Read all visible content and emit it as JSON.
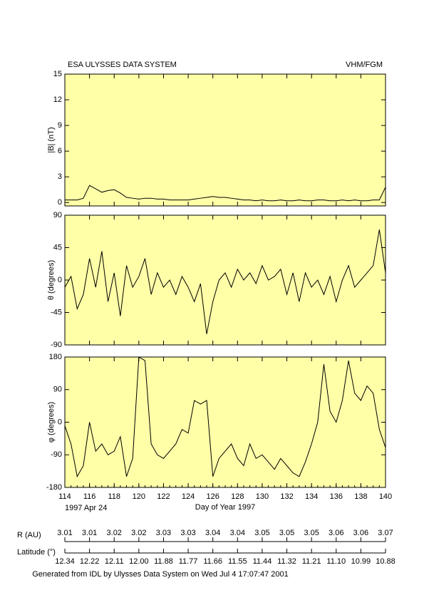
{
  "header": {
    "title": "ESA ULYSSES DATA SYSTEM",
    "instrument": "VHM/FGM"
  },
  "chart_data": [
    {
      "type": "line",
      "ylabel": "|B| (nT)",
      "background": "#ffffa8",
      "xlim": [
        114,
        140
      ],
      "ylim": [
        -0.4,
        15
      ],
      "yticks": [
        0,
        3,
        6,
        9,
        12,
        15
      ],
      "x": [
        114,
        114.5,
        115,
        115.5,
        116,
        116.5,
        117,
        117.5,
        118,
        118.5,
        119,
        119.5,
        120,
        120.5,
        121,
        121.5,
        122,
        122.5,
        123,
        123.5,
        124,
        124.5,
        125,
        125.5,
        126,
        126.5,
        127,
        127.5,
        128,
        128.5,
        129,
        129.5,
        130,
        130.5,
        131,
        131.5,
        132,
        132.5,
        133,
        133.5,
        134,
        134.5,
        135,
        135.5,
        136,
        136.5,
        137,
        137.5,
        138,
        138.5,
        139,
        139.5,
        140
      ],
      "series": [
        {
          "color": "#000000",
          "values": [
            0.3,
            0.3,
            0.3,
            0.5,
            2.0,
            1.6,
            1.2,
            1.4,
            1.5,
            1.1,
            0.6,
            0.5,
            0.4,
            0.5,
            0.5,
            0.4,
            0.4,
            0.3,
            0.3,
            0.3,
            0.3,
            0.4,
            0.5,
            0.6,
            0.7,
            0.6,
            0.6,
            0.5,
            0.4,
            0.3,
            0.3,
            0.2,
            0.3,
            0.2,
            0.2,
            0.3,
            0.2,
            0.2,
            0.3,
            0.2,
            0.2,
            0.3,
            0.3,
            0.2,
            0.2,
            0.3,
            0.2,
            0.3,
            0.2,
            0.2,
            0.3,
            0.3,
            1.8
          ]
        }
      ]
    },
    {
      "type": "line",
      "ylabel": "θ (degrees)",
      "background": "#ffffa8",
      "xlim": [
        114,
        140
      ],
      "ylim": [
        -90,
        90
      ],
      "yticks": [
        -90,
        -45,
        0,
        45,
        90
      ],
      "x": [
        114,
        114.5,
        115,
        115.5,
        116,
        116.5,
        117,
        117.5,
        118,
        118.5,
        119,
        119.5,
        120,
        120.5,
        121,
        121.5,
        122,
        122.5,
        123,
        123.5,
        124,
        124.5,
        125,
        125.5,
        126,
        126.5,
        127,
        127.5,
        128,
        128.5,
        129,
        129.5,
        130,
        130.5,
        131,
        131.5,
        132,
        132.5,
        133,
        133.5,
        134,
        134.5,
        135,
        135.5,
        136,
        136.5,
        137,
        137.5,
        138,
        138.5,
        139,
        139.5,
        140
      ],
      "series": [
        {
          "color": "#000000",
          "values": [
            -10,
            5,
            -40,
            -20,
            30,
            -10,
            40,
            -30,
            10,
            -50,
            20,
            -10,
            5,
            30,
            -20,
            10,
            -10,
            0,
            -20,
            5,
            -10,
            -30,
            -5,
            -75,
            -30,
            0,
            10,
            -10,
            15,
            0,
            10,
            -5,
            20,
            0,
            5,
            15,
            -20,
            10,
            -30,
            10,
            -10,
            0,
            -20,
            5,
            -30,
            0,
            20,
            -10,
            0,
            10,
            20,
            70,
            10
          ]
        }
      ]
    },
    {
      "type": "line",
      "ylabel": "φ (degrees)",
      "xlabel": "Day of Year 1997",
      "start_date": "1997 Apr 24",
      "background": "#ffffa8",
      "xlim": [
        114,
        140
      ],
      "ylim": [
        -180,
        180
      ],
      "yticks": [
        -180,
        -90,
        0,
        90,
        180
      ],
      "xticks": [
        114,
        116,
        118,
        120,
        122,
        124,
        126,
        128,
        130,
        132,
        134,
        136,
        138,
        140
      ],
      "x": [
        114,
        114.5,
        115,
        115.5,
        116,
        116.5,
        117,
        117.5,
        118,
        118.5,
        119,
        119.5,
        120,
        120.5,
        121,
        121.5,
        122,
        122.5,
        123,
        123.5,
        124,
        124.5,
        125,
        125.5,
        126,
        126.5,
        127,
        127.5,
        128,
        128.5,
        129,
        129.5,
        130,
        130.5,
        131,
        131.5,
        132,
        132.5,
        133,
        133.5,
        134,
        134.5,
        135,
        135.5,
        136,
        136.5,
        137,
        137.5,
        138,
        138.5,
        139,
        139.5,
        140
      ],
      "series": [
        {
          "color": "#000000",
          "values": [
            -10,
            -60,
            -150,
            -120,
            0,
            -80,
            -60,
            -90,
            -80,
            -40,
            -150,
            -100,
            180,
            170,
            -60,
            -90,
            -100,
            -80,
            -60,
            -20,
            -30,
            60,
            50,
            60,
            -150,
            -100,
            -80,
            -60,
            -100,
            -120,
            -60,
            -100,
            -90,
            -110,
            -130,
            -100,
            -120,
            -140,
            -150,
            -110,
            -60,
            0,
            160,
            30,
            0,
            60,
            170,
            80,
            60,
            100,
            80,
            -20,
            -70
          ]
        }
      ]
    }
  ],
  "ephemeris": {
    "r_label": "R (AU)",
    "r": [
      "3.01",
      "3.01",
      "3.02",
      "3.02",
      "3.03",
      "3.03",
      "3.04",
      "3.04",
      "3.05",
      "3.05",
      "3.05",
      "3.06",
      "3.06",
      "3.07"
    ],
    "lat_label": "Latitude (°)",
    "lat": [
      "12.34",
      "12.22",
      "12.11",
      "12.00",
      "11.88",
      "11.77",
      "11.66",
      "11.55",
      "11.44",
      "11.32",
      "11.21",
      "11.10",
      "10.99",
      "10.88"
    ]
  },
  "footer": "Generated from IDL by Ulysses Data System on Wed Jul 4 17:07:47 2001"
}
